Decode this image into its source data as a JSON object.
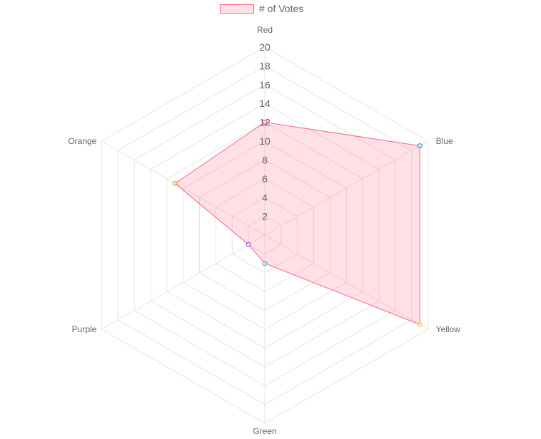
{
  "chart_data": {
    "type": "radar",
    "categories": [
      "Red",
      "Blue",
      "Yellow",
      "Green",
      "Purple",
      "Orange"
    ],
    "series": [
      {
        "name": "# of Votes",
        "values": [
          12,
          19,
          19,
          3,
          2,
          11
        ],
        "border_color": "#ff6384",
        "fill_color": "rgba(255,99,132,0.2)"
      }
    ],
    "point_colors": [
      "#ff6384",
      "#36a2eb",
      "#ffcd56",
      "#4bc0c0",
      "#9966ff",
      "#ff9f40"
    ],
    "r_ticks": [
      "2",
      "4",
      "6",
      "8",
      "10",
      "12",
      "14",
      "16",
      "18",
      "20"
    ],
    "rlim": [
      0,
      20
    ],
    "grid": true,
    "legend_position": "top"
  }
}
